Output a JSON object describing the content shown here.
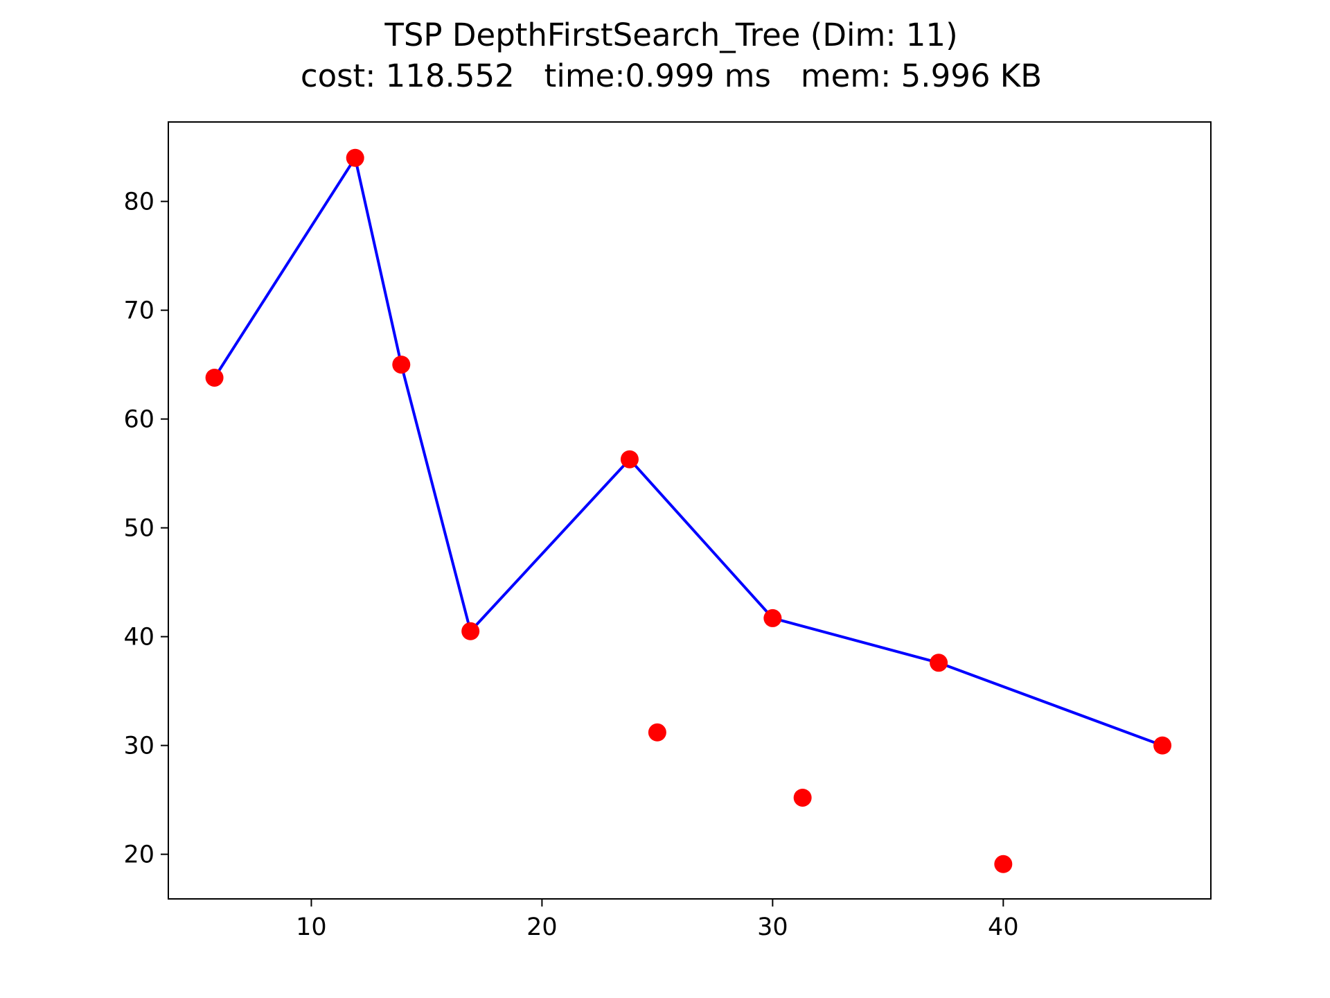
{
  "chart_data": {
    "type": "scatter",
    "title": "TSP DepthFirstSearch_Tree (Dim: 11)",
    "subtitle": "cost: 118.552   time:0.999 ms   mem: 5.996 KB",
    "xlabel": "",
    "ylabel": "",
    "xlim": [
      3.8,
      49.0
    ],
    "ylim": [
      15.9,
      87.3
    ],
    "xticks": [
      10,
      20,
      30,
      40
    ],
    "yticks": [
      20,
      30,
      40,
      50,
      60,
      70,
      80
    ],
    "grid": false,
    "legend": "none",
    "points": {
      "x": [
        5.8,
        11.9,
        13.9,
        16.9,
        23.8,
        25.0,
        30.0,
        31.3,
        37.2,
        40.0,
        46.9
      ],
      "y": [
        63.8,
        84.0,
        65.0,
        40.5,
        56.3,
        31.2,
        41.7,
        25.2,
        37.6,
        19.1,
        30.0
      ],
      "color": "#ff0000"
    },
    "path": {
      "x": [
        5.8,
        11.9,
        13.9,
        16.9,
        23.8,
        30.0,
        37.2,
        46.9
      ],
      "y": [
        63.8,
        84.0,
        65.0,
        40.5,
        56.3,
        41.7,
        37.6,
        30.0
      ],
      "color": "#0000ff"
    }
  }
}
